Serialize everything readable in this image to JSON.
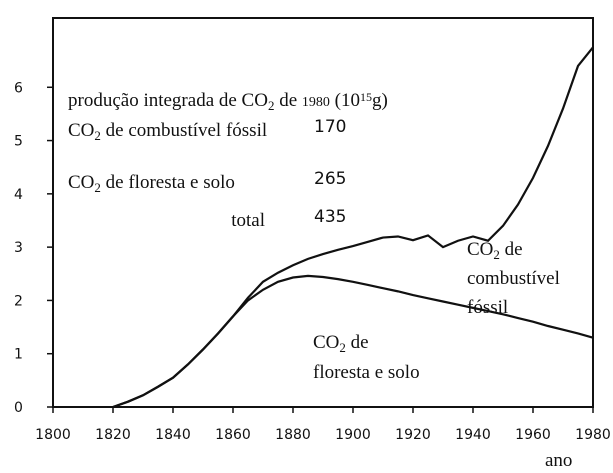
{
  "chart_data": {
    "type": "line",
    "x": [
      1820,
      1825,
      1830,
      1835,
      1840,
      1845,
      1850,
      1855,
      1860,
      1865,
      1870,
      1875,
      1880,
      1885,
      1890,
      1895,
      1900,
      1905,
      1910,
      1915,
      1920,
      1925,
      1930,
      1935,
      1940,
      1945,
      1950,
      1955,
      1960,
      1965,
      1970,
      1975,
      1980
    ],
    "series": [
      {
        "color": "#111111",
        "values": [
          0,
          0.1,
          0.22,
          0.38,
          0.55,
          0.8,
          1.08,
          1.38,
          1.7,
          2.05,
          2.35,
          2.52,
          2.66,
          2.78,
          2.87,
          2.95,
          3.02,
          3.1,
          3.18,
          3.2,
          3.13,
          3.22,
          3.0,
          3.12,
          3.2,
          3.12,
          3.4,
          3.8,
          4.3,
          4.9,
          5.6,
          6.4,
          6.75
        ]
      },
      {
        "color": "#111111",
        "values": [
          0,
          0.1,
          0.22,
          0.38,
          0.55,
          0.8,
          1.08,
          1.38,
          1.7,
          2.0,
          2.2,
          2.35,
          2.43,
          2.46,
          2.44,
          2.4,
          2.35,
          2.29,
          2.23,
          2.17,
          2.1,
          2.04,
          1.98,
          1.92,
          1.86,
          1.8,
          1.74,
          1.67,
          1.6,
          1.52,
          1.45,
          1.38,
          1.3
        ]
      }
    ],
    "xlim": [
      1800,
      1980
    ],
    "xticks": [
      1800,
      1820,
      1840,
      1860,
      1880,
      1900,
      1920,
      1940,
      1960,
      1980
    ],
    "ylim": [
      0,
      7.3
    ],
    "yticks": [
      0,
      1,
      2,
      3,
      4,
      5,
      6
    ],
    "xlabel": "ano",
    "info": {
      "title": [
        {
          "text": "produção integrada de CO"
        },
        {
          "text": "2",
          "style": "sub"
        },
        {
          "text": " de "
        },
        {
          "text": "1980",
          "style": "small"
        },
        {
          "text": "  (10"
        },
        {
          "text": "15",
          "style": "sup"
        },
        {
          "text": "g)"
        }
      ],
      "rows": [
        {
          "label": [
            {
              "text": "CO"
            },
            {
              "text": "2",
              "style": "sub"
            },
            {
              "text": " de combustível fóssil"
            }
          ],
          "value": 170
        },
        {
          "label": [
            {
              "text": "CO"
            },
            {
              "text": "2",
              "style": "sub"
            },
            {
              "text": "  de floresta e solo"
            }
          ],
          "value": 265
        },
        {
          "label": [
            {
              "text": "total"
            }
          ],
          "value": 435
        }
      ]
    },
    "annotations": [
      {
        "lines": [
          [
            {
              "text": "CO"
            },
            {
              "text": "2",
              "style": "sub"
            },
            {
              "text": " de"
            }
          ],
          [
            {
              "text": "combustível"
            }
          ],
          [
            {
              "text": "fóssil"
            }
          ]
        ]
      },
      {
        "lines": [
          [
            {
              "text": "CO"
            },
            {
              "text": "2",
              "style": "sub"
            },
            {
              "text": "  de"
            }
          ],
          [
            {
              "text": "floresta e solo"
            }
          ]
        ]
      }
    ]
  }
}
